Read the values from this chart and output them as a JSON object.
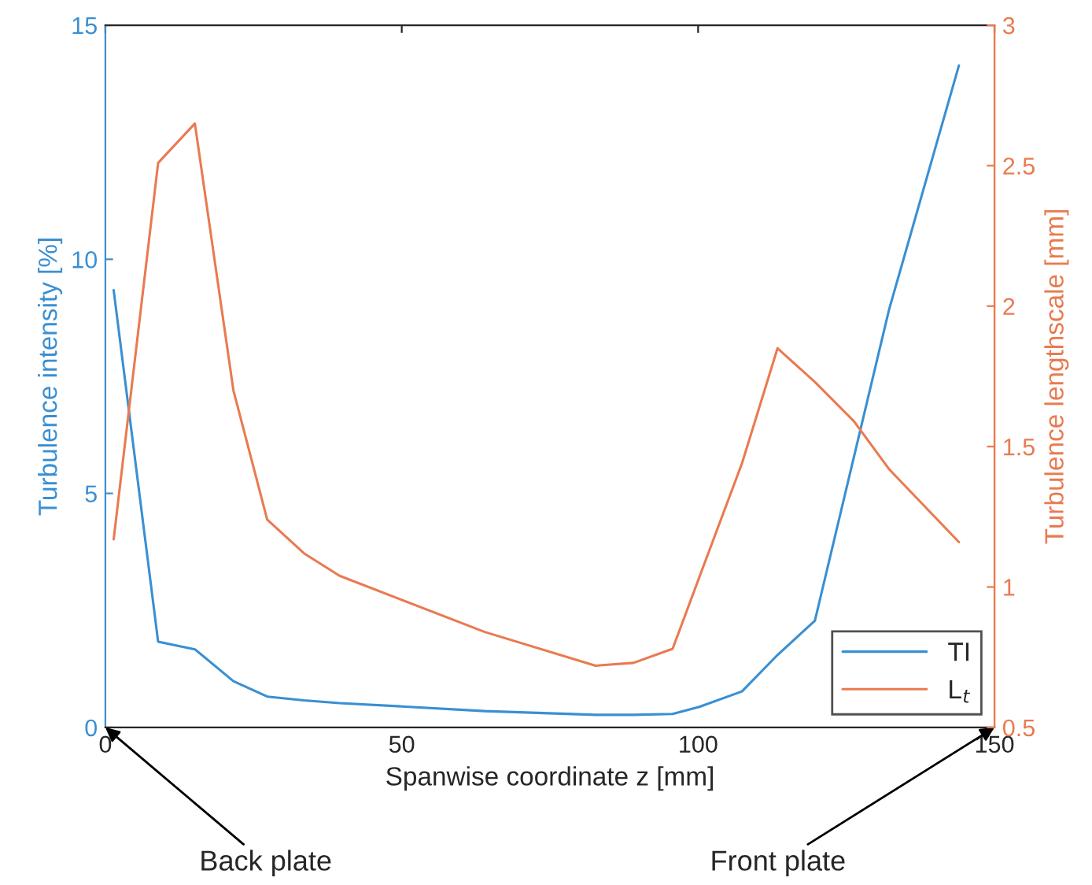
{
  "chart_data": {
    "type": "line",
    "xlabel": "Spanwise coordinate z [mm]",
    "ylabel": "Turbulence intensity [%]",
    "y2label": "Turbulence lengthscale [mm]",
    "series": [
      {
        "name": "TI",
        "color": "#3a8fd2",
        "x": [
          1.4,
          8.9,
          15.1,
          21.6,
          27.3,
          33.5,
          39.5,
          50,
          64,
          82.7,
          89.1,
          95.7,
          100.2,
          107.4,
          113.4,
          119.7,
          132.2,
          144
        ],
        "values": [
          9.34,
          1.83,
          1.67,
          0.99,
          0.66,
          0.58,
          0.52,
          0.45,
          0.35,
          0.27,
          0.27,
          0.29,
          0.44,
          0.77,
          1.55,
          2.28,
          8.92,
          14.14
        ]
      },
      {
        "name": "L$_{t}$",
        "color": "#e97a50",
        "axis": "y2",
        "x": [
          1.4,
          8.9,
          15.1,
          21.6,
          27.3,
          33.5,
          39.5,
          64,
          82.7,
          89.1,
          95.7,
          101,
          107.4,
          113.4,
          119.7,
          126.3,
          132.2,
          144
        ],
        "values": [
          1.17,
          2.51,
          2.65,
          1.7,
          1.24,
          1.12,
          1.04,
          0.84,
          0.72,
          0.73,
          0.78,
          1.08,
          1.44,
          1.85,
          1.73,
          1.59,
          1.42,
          1.16
        ]
      }
    ],
    "xlim": [
      0,
      150
    ],
    "xticks": [
      0,
      50,
      100,
      150
    ],
    "ylim": [
      0,
      15
    ],
    "yticks": [
      0,
      5,
      10,
      15
    ],
    "y2lim": [
      0.5,
      3
    ],
    "y2ticks": [
      0.5,
      1,
      1.5,
      2,
      2.5,
      3
    ],
    "annotations": [
      "Back plate",
      "Front plate"
    ],
    "legend": "bottom right",
    "grid": false,
    "marker": "none",
    "line_style": "solid"
  }
}
